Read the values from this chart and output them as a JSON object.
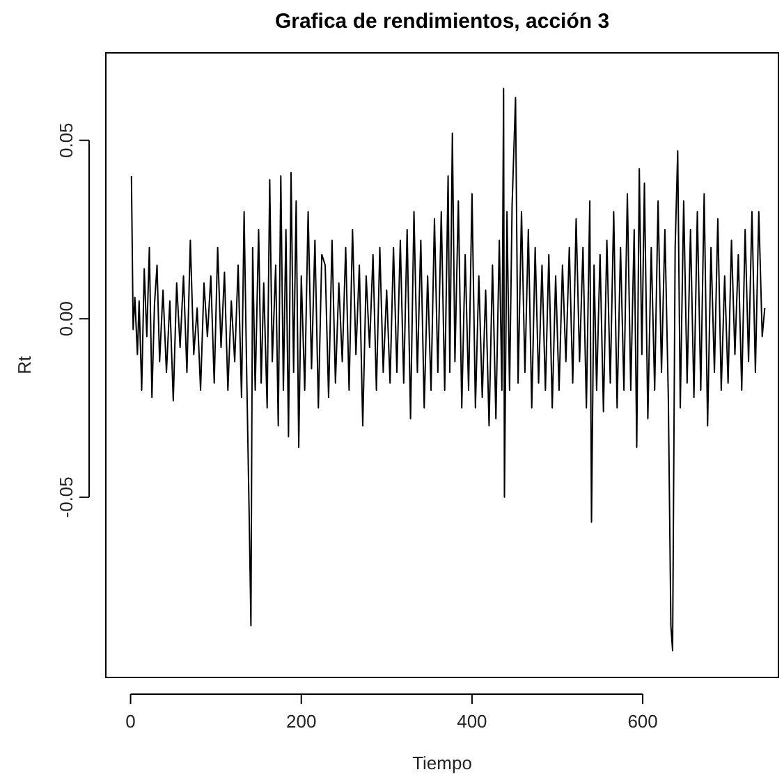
{
  "chart_data": {
    "type": "line",
    "title": "Grafica de rendimientos, acción 3",
    "xlabel": "Tiempo",
    "ylabel": "Rt",
    "xlim": [
      -29,
      759
    ],
    "ylim": [
      -0.1005,
      0.0745
    ],
    "xticks": [
      0,
      200,
      400,
      600
    ],
    "yticks": [
      {
        "value": -0.05,
        "label": "-0.05"
      },
      {
        "value": 0,
        "label": "0.00"
      },
      {
        "value": 0.05,
        "label": "0.05"
      }
    ],
    "grid": false,
    "marker": "none",
    "line_style": "solid",
    "series": [
      {
        "color": "#000000",
        "x": [
          1,
          3,
          5,
          8,
          10,
          13,
          16,
          19,
          22,
          25,
          28,
          31,
          34,
          38,
          42,
          46,
          50,
          54,
          58,
          62,
          66,
          70,
          74,
          78,
          82,
          86,
          90,
          94,
          98,
          102,
          106,
          110,
          114,
          118,
          122,
          126,
          130,
          133,
          136,
          139,
          141,
          143,
          146,
          150,
          153,
          156,
          160,
          163,
          166,
          170,
          173,
          176,
          179,
          182,
          185,
          188,
          191,
          194,
          197,
          200,
          204,
          208,
          212,
          216,
          220,
          224,
          228,
          232,
          236,
          240,
          244,
          248,
          252,
          256,
          260,
          264,
          268,
          272,
          276,
          280,
          284,
          288,
          292,
          296,
          300,
          304,
          308,
          312,
          316,
          320,
          324,
          328,
          332,
          336,
          340,
          344,
          348,
          352,
          356,
          360,
          364,
          368,
          372,
          374,
          377,
          380,
          384,
          388,
          392,
          396,
          400,
          404,
          408,
          412,
          416,
          420,
          424,
          428,
          432,
          435,
          437,
          438,
          441,
          444,
          447,
          451,
          454,
          458,
          462,
          466,
          470,
          474,
          478,
          482,
          486,
          490,
          494,
          498,
          502,
          506,
          510,
          514,
          518,
          522,
          526,
          530,
          534,
          538,
          540,
          543,
          546,
          550,
          554,
          558,
          562,
          566,
          570,
          574,
          578,
          582,
          586,
          590,
          593,
          596,
          599,
          602,
          606,
          610,
          614,
          618,
          622,
          626,
          630,
          633,
          635,
          638,
          641,
          644,
          648,
          652,
          656,
          660,
          664,
          668,
          672,
          676,
          680,
          684,
          688,
          692,
          696,
          700,
          704,
          708,
          712,
          716,
          720,
          724,
          728,
          732,
          736,
          740,
          743
        ],
        "values": [
          0.04,
          -0.003,
          0.006,
          -0.01,
          0.005,
          -0.02,
          0.014,
          -0.005,
          0.02,
          -0.022,
          0.004,
          0.015,
          -0.012,
          0.008,
          -0.015,
          0.005,
          -0.023,
          0.01,
          -0.008,
          0.012,
          -0.015,
          0.022,
          -0.01,
          0.003,
          -0.02,
          0.01,
          -0.005,
          0.012,
          -0.018,
          0.02,
          -0.008,
          0.013,
          -0.02,
          0.005,
          -0.012,
          0.015,
          -0.022,
          0.03,
          -0.015,
          -0.056,
          -0.086,
          0.02,
          -0.02,
          0.025,
          -0.018,
          0.01,
          -0.025,
          0.039,
          -0.012,
          0.015,
          -0.03,
          0.04,
          -0.02,
          0.025,
          -0.033,
          0.041,
          -0.015,
          0.033,
          -0.036,
          0.012,
          -0.02,
          0.03,
          -0.014,
          0.022,
          -0.025,
          0.018,
          0.015,
          -0.022,
          0.022,
          -0.018,
          0.01,
          -0.012,
          0.02,
          -0.02,
          0.025,
          -0.01,
          0.015,
          -0.03,
          0.012,
          -0.008,
          0.018,
          -0.02,
          0.02,
          -0.015,
          0.008,
          -0.018,
          0.02,
          -0.015,
          0.022,
          -0.018,
          0.025,
          -0.028,
          0.03,
          -0.015,
          0.022,
          -0.025,
          0.012,
          -0.02,
          0.028,
          -0.015,
          0.03,
          -0.02,
          0.04,
          -0.015,
          0.052,
          -0.012,
          0.033,
          -0.025,
          0.018,
          -0.02,
          0.035,
          -0.025,
          0.012,
          -0.022,
          0.008,
          -0.03,
          0.015,
          -0.028,
          0.022,
          -0.02,
          0.0645,
          -0.05,
          0.03,
          -0.02,
          0.032,
          0.062,
          -0.018,
          0.03,
          -0.015,
          0.025,
          -0.025,
          0.02,
          -0.018,
          0.015,
          -0.02,
          0.018,
          -0.025,
          0.012,
          -0.02,
          0.015,
          -0.012,
          0.02,
          -0.018,
          0.028,
          -0.012,
          0.02,
          -0.025,
          0.033,
          -0.057,
          0.015,
          -0.02,
          0.018,
          -0.026,
          0.022,
          -0.018,
          0.03,
          -0.025,
          0.02,
          -0.02,
          0.035,
          -0.02,
          0.025,
          -0.036,
          0.042,
          -0.01,
          0.038,
          -0.028,
          0.02,
          -0.02,
          0.033,
          -0.015,
          0.025,
          -0.022,
          -0.086,
          -0.093,
          0.02,
          0.047,
          -0.025,
          0.033,
          -0.018,
          0.025,
          -0.022,
          0.03,
          -0.02,
          0.035,
          -0.03,
          0.02,
          -0.015,
          0.028,
          -0.02,
          0.012,
          -0.018,
          0.022,
          -0.01,
          0.018,
          -0.02,
          0.025,
          -0.012,
          0.03,
          -0.015,
          0.03,
          -0.005,
          0.003
        ]
      }
    ]
  }
}
